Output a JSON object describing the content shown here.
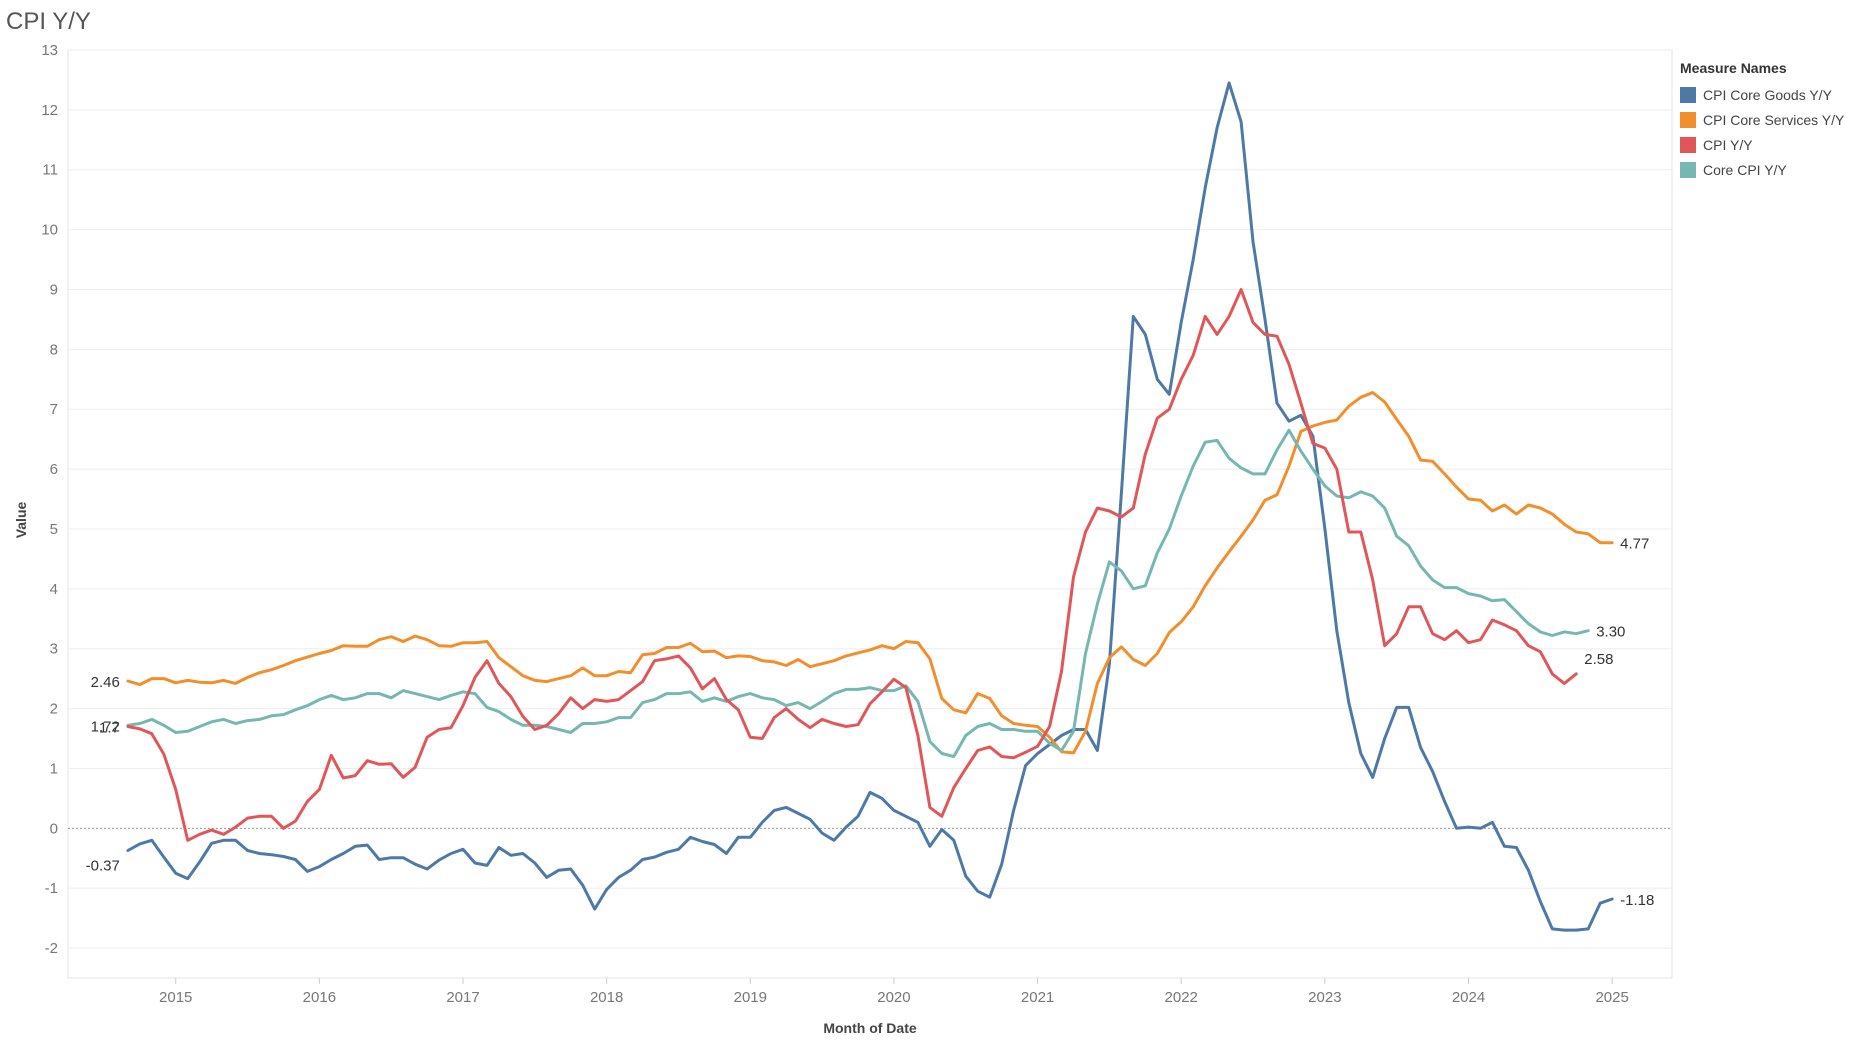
{
  "page": {
    "title": "CPI Y/Y"
  },
  "chart_data": {
    "type": "line",
    "title": "CPI Y/Y",
    "xlabel": "Month of Date",
    "ylabel": "Value",
    "ylim": [
      -2.5,
      13
    ],
    "xlim": [
      "2014-04",
      "2025-06"
    ],
    "y_ticks": [
      13,
      12,
      11,
      10,
      9,
      8,
      7,
      6,
      5,
      4,
      3,
      2,
      1,
      0,
      -1,
      -2
    ],
    "x_ticks": [
      "2015",
      "2016",
      "2017",
      "2018",
      "2019",
      "2020",
      "2021",
      "2022",
      "2023",
      "2024",
      "2025"
    ],
    "reference_line": 0,
    "legend": {
      "title": "Measure Names",
      "position": "top-right",
      "entries": [
        "CPI Core Goods Y/Y",
        "CPI Core Services Y/Y",
        "CPI Y/Y",
        "Core CPI Y/Y"
      ]
    },
    "start_month": "2014-09",
    "series": [
      {
        "name": "CPI Core Goods Y/Y",
        "color": "#4E79A7",
        "start_label": "-0.37",
        "end_label": "-1.18",
        "values": [
          -0.37,
          -0.26,
          -0.2,
          -0.48,
          -0.75,
          -0.84,
          -0.56,
          -0.25,
          -0.2,
          -0.2,
          -0.37,
          -0.42,
          -0.44,
          -0.47,
          -0.52,
          -0.72,
          -0.64,
          -0.52,
          -0.42,
          -0.3,
          -0.28,
          -0.52,
          -0.49,
          -0.49,
          -0.6,
          -0.68,
          -0.53,
          -0.42,
          -0.35,
          -0.58,
          -0.62,
          -0.32,
          -0.45,
          -0.42,
          -0.58,
          -0.82,
          -0.7,
          -0.68,
          -0.95,
          -1.35,
          -1.02,
          -0.82,
          -0.7,
          -0.52,
          -0.48,
          -0.4,
          -0.35,
          -0.15,
          -0.22,
          -0.27,
          -0.42,
          -0.15,
          -0.15,
          0.1,
          0.3,
          0.35,
          0.25,
          0.15,
          -0.08,
          -0.2,
          0.02,
          0.2,
          0.6,
          0.5,
          0.3,
          0.2,
          0.1,
          -0.3,
          -0.02,
          -0.2,
          -0.8,
          -1.05,
          -1.15,
          -0.6,
          0.3,
          1.05,
          1.25,
          1.4,
          1.55,
          1.65,
          1.65,
          1.3,
          2.75,
          5.6,
          8.55,
          8.25,
          7.5,
          7.25,
          8.45,
          9.5,
          10.7,
          11.7,
          12.45,
          11.8,
          9.8,
          8.5,
          7.1,
          6.8,
          6.9,
          6.55,
          5.0,
          3.3,
          2.1,
          1.25,
          0.85,
          1.5,
          2.02,
          2.02,
          1.35,
          0.95,
          0.45,
          0.0,
          0.02,
          0.0,
          0.1,
          -0.3,
          -0.32,
          -0.7,
          -1.22,
          -1.68,
          -1.7,
          -1.7,
          -1.68,
          -1.25,
          -1.18
        ]
      },
      {
        "name": "CPI Core Services Y/Y",
        "color": "#F28E2B",
        "start_label": "2.46",
        "end_label": "4.77",
        "values": [
          2.46,
          2.4,
          2.5,
          2.5,
          2.43,
          2.47,
          2.44,
          2.43,
          2.47,
          2.42,
          2.52,
          2.6,
          2.65,
          2.72,
          2.8,
          2.86,
          2.92,
          2.97,
          3.05,
          3.04,
          3.04,
          3.15,
          3.2,
          3.12,
          3.21,
          3.15,
          3.05,
          3.04,
          3.1,
          3.1,
          3.12,
          2.85,
          2.7,
          2.55,
          2.47,
          2.45,
          2.5,
          2.55,
          2.68,
          2.55,
          2.55,
          2.62,
          2.6,
          2.9,
          2.92,
          3.02,
          3.02,
          3.09,
          2.95,
          2.96,
          2.85,
          2.88,
          2.87,
          2.8,
          2.78,
          2.72,
          2.82,
          2.7,
          2.75,
          2.8,
          2.88,
          2.93,
          2.98,
          3.05,
          3.0,
          3.12,
          3.1,
          2.83,
          2.17,
          1.98,
          1.93,
          2.25,
          2.17,
          1.88,
          1.75,
          1.72,
          1.7,
          1.52,
          1.28,
          1.26,
          1.62,
          2.42,
          2.85,
          3.03,
          2.82,
          2.72,
          2.92,
          3.27,
          3.45,
          3.7,
          4.05,
          4.35,
          4.62,
          4.88,
          5.15,
          5.48,
          5.57,
          6.05,
          6.63,
          6.72,
          6.78,
          6.82,
          7.05,
          7.2,
          7.28,
          7.12,
          6.83,
          6.55,
          6.15,
          6.13,
          5.92,
          5.7,
          5.5,
          5.48,
          5.3,
          5.4,
          5.25,
          5.4,
          5.35,
          5.25,
          5.08,
          4.95,
          4.92,
          4.77,
          4.77
        ]
      },
      {
        "name": "CPI Y/Y",
        "color": "#E15759",
        "start_label": "1.7",
        "end_label": "2.58",
        "values": [
          1.7,
          1.66,
          1.58,
          1.24,
          0.65,
          -0.2,
          -0.1,
          -0.03,
          -0.1,
          0.02,
          0.17,
          0.2,
          0.2,
          0.0,
          0.12,
          0.45,
          0.65,
          1.22,
          0.84,
          0.88,
          1.13,
          1.07,
          1.08,
          0.85,
          1.02,
          1.52,
          1.65,
          1.68,
          2.05,
          2.52,
          2.8,
          2.42,
          2.2,
          1.87,
          1.65,
          1.72,
          1.92,
          2.18,
          2.0,
          2.15,
          2.12,
          2.15,
          2.3,
          2.45,
          2.8,
          2.83,
          2.88,
          2.68,
          2.33,
          2.5,
          2.15,
          1.98,
          1.52,
          1.5,
          1.85,
          2.0,
          1.82,
          1.68,
          1.82,
          1.75,
          1.7,
          1.73,
          2.08,
          2.28,
          2.49,
          2.35,
          1.55,
          0.35,
          0.2,
          0.68,
          1.0,
          1.3,
          1.36,
          1.2,
          1.18,
          1.27,
          1.37,
          1.7,
          2.62,
          4.2,
          4.95,
          5.35,
          5.3,
          5.2,
          5.35,
          6.25,
          6.85,
          7.0,
          7.5,
          7.9,
          8.55,
          8.25,
          8.55,
          9.0,
          8.45,
          8.25,
          8.22,
          7.75,
          7.1,
          6.43,
          6.35,
          6.0,
          4.95,
          4.95,
          4.15,
          3.05,
          3.25,
          3.7,
          3.7,
          3.25,
          3.15,
          3.3,
          3.1,
          3.15,
          3.48,
          3.4,
          3.3,
          3.05,
          2.95,
          2.58,
          2.42,
          2.58
        ]
      },
      {
        "name": "Core CPI Y/Y",
        "color": "#76B7B2",
        "start_label": "1.72",
        "end_label": "3.30",
        "values": [
          1.72,
          1.75,
          1.82,
          1.72,
          1.6,
          1.62,
          1.7,
          1.78,
          1.82,
          1.75,
          1.8,
          1.82,
          1.88,
          1.9,
          1.98,
          2.05,
          2.15,
          2.22,
          2.15,
          2.18,
          2.25,
          2.25,
          2.18,
          2.3,
          2.25,
          2.2,
          2.15,
          2.22,
          2.28,
          2.25,
          2.02,
          1.95,
          1.82,
          1.72,
          1.72,
          1.7,
          1.65,
          1.6,
          1.75,
          1.75,
          1.78,
          1.85,
          1.85,
          2.1,
          2.15,
          2.25,
          2.25,
          2.28,
          2.12,
          2.18,
          2.12,
          2.2,
          2.25,
          2.18,
          2.15,
          2.05,
          2.1,
          2.0,
          2.12,
          2.25,
          2.32,
          2.32,
          2.35,
          2.3,
          2.3,
          2.38,
          2.12,
          1.45,
          1.25,
          1.2,
          1.55,
          1.7,
          1.75,
          1.65,
          1.65,
          1.62,
          1.62,
          1.42,
          1.3,
          1.62,
          2.92,
          3.75,
          4.45,
          4.3,
          4.0,
          4.05,
          4.6,
          5.0,
          5.55,
          6.05,
          6.45,
          6.48,
          6.18,
          6.02,
          5.92,
          5.92,
          6.32,
          6.65,
          6.3,
          6.0,
          5.72,
          5.55,
          5.52,
          5.62,
          5.55,
          5.35,
          4.88,
          4.72,
          4.38,
          4.15,
          4.02,
          4.02,
          3.92,
          3.88,
          3.8,
          3.82,
          3.62,
          3.42,
          3.28,
          3.22,
          3.28,
          3.25,
          3.3
        ]
      }
    ]
  }
}
